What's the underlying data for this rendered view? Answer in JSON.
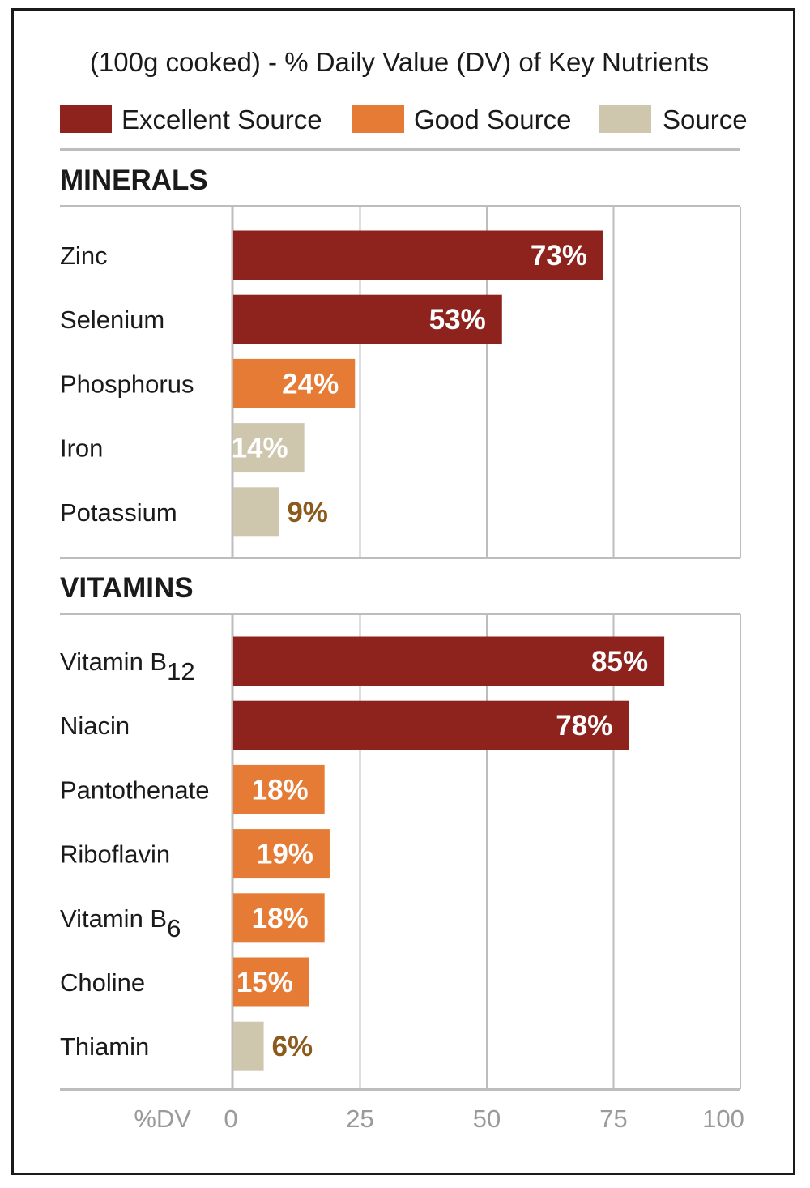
{
  "chart_data": {
    "type": "bar",
    "orientation": "horizontal",
    "title": "(100g cooked) - % Daily Value (DV) of Key Nutrients",
    "xlabel": "%DV",
    "xlim": [
      0,
      100
    ],
    "xticks": [
      0,
      25,
      50,
      75,
      100
    ],
    "grid": true,
    "legend": [
      {
        "key": "excellent",
        "label": "Excellent Source",
        "color": "#8e231e"
      },
      {
        "key": "good",
        "label": "Good Source",
        "color": "#e57b34"
      },
      {
        "key": "source",
        "label": "Source",
        "color": "#cfc6ae"
      }
    ],
    "sections": [
      {
        "name": "MINERALS",
        "items": [
          {
            "label": "Zinc",
            "value": 73,
            "display": "73%",
            "level": "excellent"
          },
          {
            "label": "Selenium",
            "value": 53,
            "display": "53%",
            "level": "excellent"
          },
          {
            "label": "Phosphorus",
            "value": 24,
            "display": "24%",
            "level": "good"
          },
          {
            "label": "Iron",
            "value": 14,
            "display": "14%",
            "level": "source"
          },
          {
            "label": "Potassium",
            "value": 9,
            "display": "9%",
            "level": "source"
          }
        ]
      },
      {
        "name": "VITAMINS",
        "items": [
          {
            "label": "Vitamin B",
            "sub": "12",
            "value": 85,
            "display": "85%",
            "level": "excellent"
          },
          {
            "label": "Niacin",
            "value": 78,
            "display": "78%",
            "level": "excellent"
          },
          {
            "label": "Pantothenate",
            "value": 18,
            "display": "18%",
            "level": "good"
          },
          {
            "label": "Riboflavin",
            "value": 19,
            "display": "19%",
            "level": "good"
          },
          {
            "label": "Vitamin B",
            "sub": "6",
            "value": 18,
            "display": "18%",
            "level": "good"
          },
          {
            "label": "Choline",
            "value": 15,
            "display": "15%",
            "level": "good"
          },
          {
            "label": "Thiamin",
            "value": 6,
            "display": "6%",
            "level": "source"
          }
        ]
      }
    ]
  },
  "colors": {
    "rule": "#bdbdbd",
    "text": "#1a1a1a",
    "tick_text": "#9a9a9a",
    "outside_value_text": "#8c5a1c",
    "inside_value_text": "#ffffff"
  }
}
